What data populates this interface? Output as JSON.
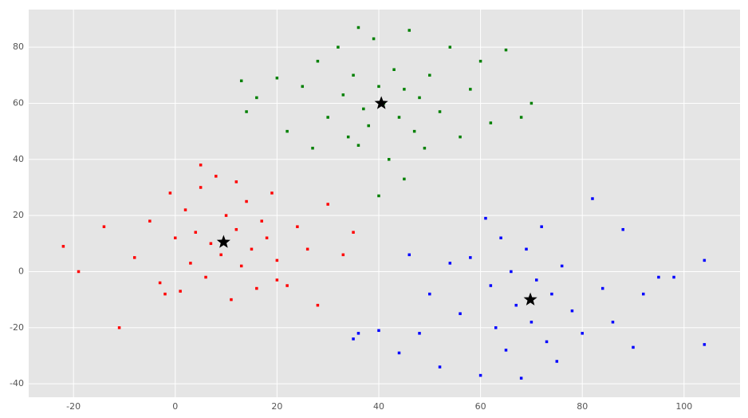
{
  "chart_data": {
    "type": "scatter",
    "xlim": [
      -28.8,
      111
    ],
    "ylim": [
      -44.8,
      93.4
    ],
    "xticks": [
      -20,
      0,
      20,
      40,
      60,
      80,
      100
    ],
    "yticks": [
      -40,
      -20,
      0,
      20,
      40,
      60,
      80
    ],
    "grid": true,
    "series": [
      {
        "color": "#ff0000",
        "marker": "square",
        "x": [
          -22,
          -19,
          -14,
          -11,
          -8,
          -5,
          -3,
          -1,
          0,
          1,
          2,
          3,
          4,
          5,
          6,
          7,
          8,
          9,
          10,
          11,
          12,
          13,
          14,
          15,
          16,
          17,
          18,
          19,
          20,
          22,
          24,
          26,
          28,
          30,
          33,
          35,
          -2,
          5,
          12,
          20
        ],
        "y": [
          9,
          0,
          16,
          -20,
          5,
          18,
          -4,
          28,
          12,
          -7,
          22,
          3,
          14,
          30,
          -2,
          10,
          34,
          6,
          20,
          -10,
          15,
          2,
          25,
          8,
          -6,
          18,
          12,
          28,
          4,
          -5,
          16,
          8,
          -12,
          24,
          6,
          14,
          -8,
          38,
          32,
          -3
        ]
      },
      {
        "color": "#008000",
        "marker": "square",
        "x": [
          13,
          14,
          16,
          20,
          22,
          25,
          27,
          28,
          30,
          32,
          33,
          34,
          35,
          36,
          37,
          38,
          39,
          40,
          41,
          42,
          43,
          44,
          45,
          46,
          47,
          48,
          49,
          50,
          52,
          54,
          56,
          58,
          60,
          62,
          65,
          68,
          70,
          40,
          45,
          36
        ],
        "y": [
          68,
          57,
          62,
          69,
          50,
          66,
          44,
          75,
          55,
          80,
          63,
          48,
          70,
          87,
          58,
          52,
          83,
          66,
          60,
          40,
          72,
          55,
          65,
          86,
          50,
          62,
          44,
          70,
          57,
          80,
          48,
          65,
          75,
          53,
          79,
          55,
          60,
          27,
          33,
          45
        ]
      },
      {
        "color": "#0000ff",
        "marker": "square",
        "x": [
          35,
          36,
          40,
          44,
          46,
          48,
          50,
          52,
          54,
          56,
          58,
          60,
          61,
          62,
          63,
          64,
          65,
          66,
          67,
          68,
          69,
          70,
          71,
          72,
          73,
          74,
          75,
          76,
          78,
          80,
          82,
          84,
          86,
          88,
          90,
          92,
          95,
          98,
          104,
          104
        ],
        "y": [
          -24,
          -22,
          -21,
          -29,
          6,
          -22,
          -8,
          -34,
          3,
          -15,
          5,
          -37,
          19,
          -5,
          -20,
          12,
          -28,
          0,
          -12,
          -38,
          8,
          -18,
          -3,
          16,
          -25,
          -8,
          -32,
          2,
          -14,
          -22,
          26,
          -6,
          -18,
          15,
          -27,
          -8,
          -2,
          -2,
          4,
          -26
        ]
      },
      {
        "color": "#000000",
        "marker": "star",
        "x": [
          9.5,
          40.5,
          69.8
        ],
        "y": [
          10.5,
          60,
          -10
        ]
      }
    ]
  }
}
